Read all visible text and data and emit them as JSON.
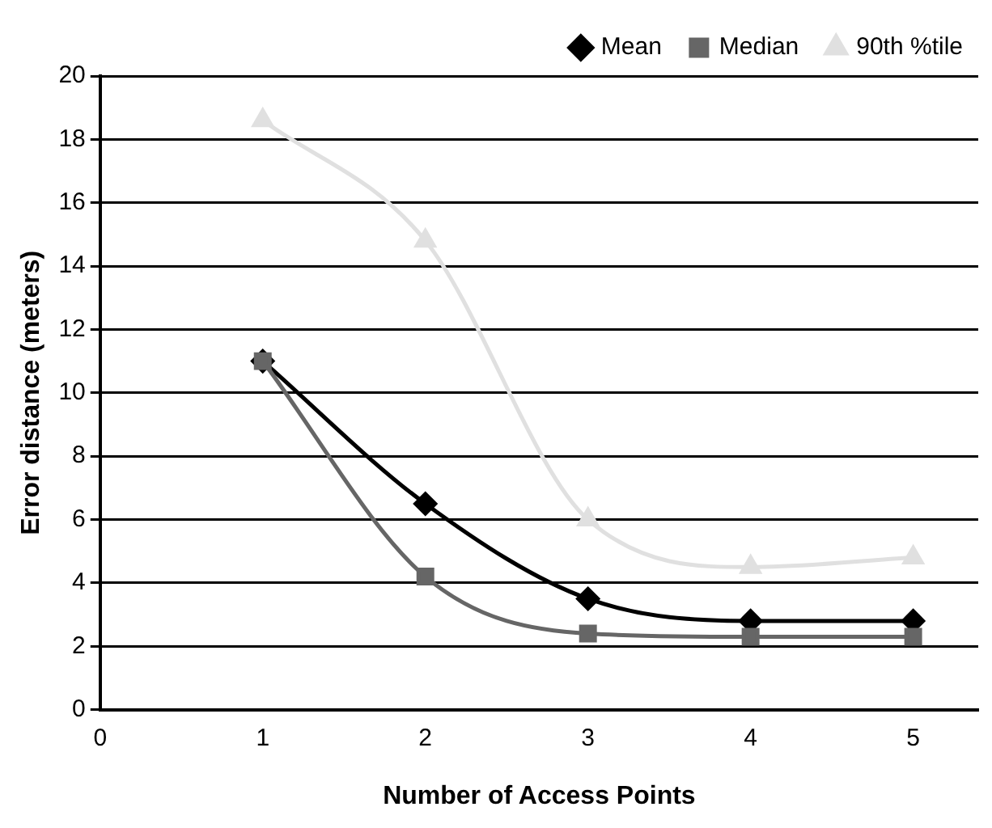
{
  "chart_data": {
    "type": "line",
    "xlabel": "Number of Access Points",
    "ylabel": "Error distance (meters)",
    "x": [
      1,
      2,
      3,
      4,
      5
    ],
    "series": [
      {
        "name": "Mean",
        "color": "#000000",
        "marker": "diamond",
        "values": [
          11,
          6.5,
          3.5,
          2.8,
          2.8
        ]
      },
      {
        "name": "Median",
        "color": "#666666",
        "marker": "square",
        "values": [
          11,
          4.2,
          2.4,
          2.3,
          2.3
        ]
      },
      {
        "name": "90th %tile",
        "color": "#e0e0e0",
        "marker": "triangle",
        "values": [
          18.6,
          14.8,
          6,
          4.5,
          4.8
        ]
      }
    ],
    "xlim": [
      0,
      5.4
    ],
    "xticks": [
      0,
      1,
      2,
      3,
      4,
      5
    ],
    "ylim": [
      0,
      20
    ],
    "yticks": [
      0,
      2,
      4,
      6,
      8,
      10,
      12,
      14,
      16,
      18,
      20
    ],
    "grid": "y",
    "legend": "top right"
  }
}
